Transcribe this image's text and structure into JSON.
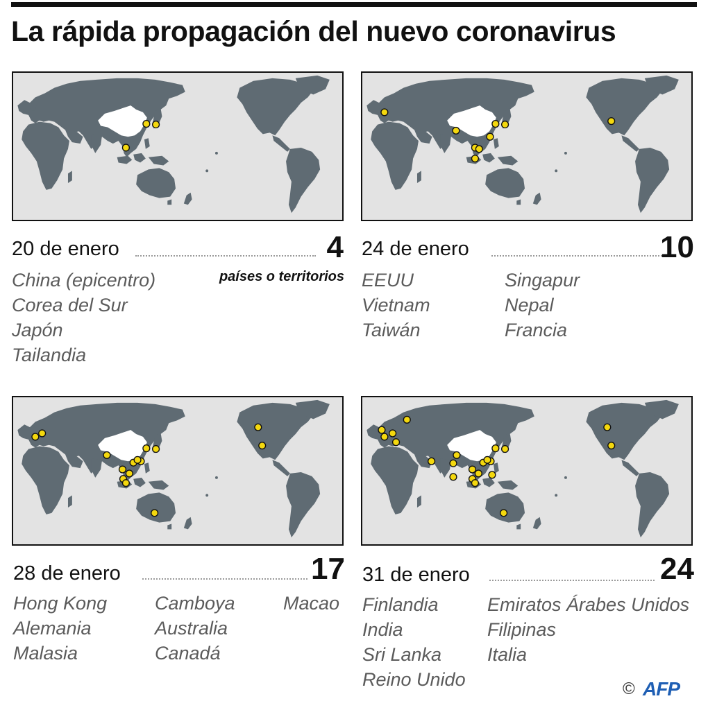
{
  "title": "La rápida propagación del nuevo coronavirus",
  "colors": {
    "land": "#5f6b73",
    "ocean": "#e3e3e3",
    "epicenter": "#ffffff",
    "case_dot": "#f4d80e"
  },
  "count_label": "países o territorios",
  "panels": [
    {
      "date": "20 de enero",
      "count": "4",
      "countries_col1": [
        "China (epicentro)",
        "Corea del Sur",
        "Japón",
        "Tailandia"
      ],
      "countries_col2": [],
      "countries_col3": []
    },
    {
      "date": "24 de enero",
      "count": "10",
      "countries_col1": [
        "EEUU",
        "Vietnam",
        "Taiwán"
      ],
      "countries_col2": [
        "Singapur",
        "Nepal",
        "Francia"
      ],
      "countries_col3": []
    },
    {
      "date": "28 de enero",
      "count": "17",
      "countries_col1": [
        "Hong Kong",
        "Alemania",
        "Malasia"
      ],
      "countries_col2": [
        "Camboya",
        "Australia",
        "Canadá"
      ],
      "countries_col3": [
        "Macao"
      ]
    },
    {
      "date": "31 de enero",
      "count": "24",
      "countries_col1": [
        "Finlandia",
        "India",
        "Sri Lanka",
        "Reino Unido"
      ],
      "countries_col2": [
        "Emiratos Árabes Unidos",
        "Filipinas",
        "Italia"
      ],
      "countries_col3": []
    }
  ],
  "footer": {
    "copyright": "©",
    "logo": "AFP"
  }
}
